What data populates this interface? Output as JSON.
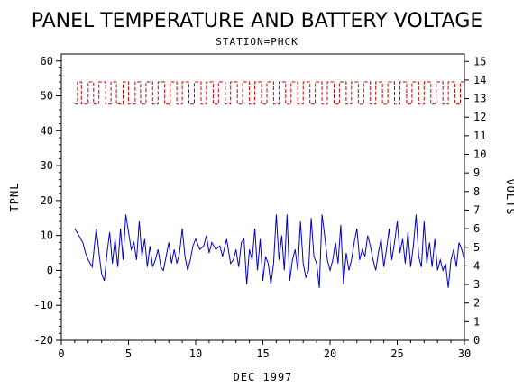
{
  "chart_data": {
    "type": "line",
    "title": "PANEL TEMPERATURE AND BATTERY VOLTAGE",
    "subtitle": "STATION=PHCK",
    "xlabel": "DEC 1997",
    "ylabel_left": "TPNL",
    "ylabel_right": "VOLTS",
    "xlim": [
      0,
      30
    ],
    "ylim_left": [
      -20,
      62
    ],
    "ylim_right": [
      0,
      15.4
    ],
    "x_ticks": [
      0,
      5,
      10,
      15,
      20,
      25,
      30
    ],
    "y_ticks_left": [
      -20,
      -10,
      0,
      10,
      20,
      30,
      40,
      50,
      60
    ],
    "y_ticks_right": [
      0,
      1,
      2,
      3,
      4,
      5,
      6,
      7,
      8,
      9,
      10,
      11,
      12,
      13,
      14,
      15
    ],
    "grid": false,
    "series": [
      {
        "axis": "left",
        "color": "#0000cc",
        "x": [
          1.0,
          1.3,
          1.6,
          1.8,
          2.0,
          2.3,
          2.6,
          2.9,
          3.0,
          3.2,
          3.4,
          3.6,
          3.8,
          4.0,
          4.2,
          4.4,
          4.6,
          4.8,
          5.0,
          5.2,
          5.4,
          5.6,
          5.8,
          6.0,
          6.2,
          6.4,
          6.6,
          6.8,
          7.0,
          7.2,
          7.4,
          7.6,
          7.8,
          8.0,
          8.2,
          8.4,
          8.6,
          8.8,
          9.0,
          9.2,
          9.4,
          9.6,
          9.8,
          10.0,
          10.3,
          10.6,
          10.8,
          11.0,
          11.2,
          11.5,
          11.8,
          12.0,
          12.3,
          12.6,
          12.8,
          13.0,
          13.2,
          13.4,
          13.6,
          13.8,
          14.0,
          14.2,
          14.4,
          14.6,
          14.8,
          15.0,
          15.2,
          15.4,
          15.6,
          15.8,
          16.0,
          16.2,
          16.4,
          16.6,
          16.8,
          17.0,
          17.2,
          17.4,
          17.6,
          17.8,
          18.0,
          18.2,
          18.4,
          18.6,
          18.8,
          19.0,
          19.2,
          19.4,
          19.6,
          19.8,
          20.0,
          20.2,
          20.4,
          20.6,
          20.8,
          21.0,
          21.2,
          21.4,
          21.6,
          21.8,
          22.0,
          22.2,
          22.4,
          22.6,
          22.8,
          23.0,
          23.2,
          23.4,
          23.6,
          23.8,
          24.0,
          24.2,
          24.4,
          24.6,
          24.8,
          25.0,
          25.2,
          25.4,
          25.6,
          25.8,
          26.0,
          26.2,
          26.4,
          26.6,
          26.8,
          27.0,
          27.2,
          27.4,
          27.6,
          27.8,
          28.0,
          28.2,
          28.4,
          28.6,
          28.8,
          29.0,
          29.2,
          29.4,
          29.6,
          29.8,
          30.0
        ],
        "values": [
          12,
          10,
          8,
          5,
          3,
          1,
          12,
          2,
          -1,
          -3,
          5,
          11,
          2,
          9,
          1,
          12,
          3,
          16,
          11,
          6,
          8,
          3,
          14,
          4,
          9,
          1,
          7,
          1,
          3,
          6,
          1,
          0,
          4,
          8,
          2,
          6,
          2,
          5,
          12,
          4,
          0,
          3,
          7,
          9,
          6,
          7,
          10,
          5,
          8,
          6,
          7,
          4,
          9,
          2,
          3,
          6,
          1,
          8,
          9,
          -4,
          6,
          3,
          12,
          0,
          9,
          -3,
          4,
          2,
          -4,
          2,
          16,
          3,
          10,
          0,
          16,
          -3,
          3,
          6,
          0,
          14,
          2,
          -2,
          0,
          15,
          4,
          2,
          -5,
          16,
          10,
          3,
          0,
          3,
          8,
          2,
          13,
          -4,
          5,
          0,
          3,
          8,
          12,
          3,
          6,
          4,
          10,
          7,
          3,
          0,
          5,
          9,
          1,
          6,
          12,
          3,
          8,
          14,
          5,
          9,
          2,
          11,
          1,
          7,
          16,
          4,
          1,
          14,
          2,
          8,
          1,
          9,
          0,
          3,
          0,
          2,
          -5,
          3,
          6,
          1,
          8,
          6,
          3
        ]
      },
      {
        "axis": "right",
        "color": "#cc0000",
        "style": "staircase",
        "low": 12.7,
        "high": 13.9,
        "x_switch": [
          1.2,
          1.5,
          2.0,
          2.4,
          2.8,
          3.3,
          3.7,
          4.1,
          4.6,
          5.0,
          5.5,
          5.9,
          6.3,
          6.8,
          7.2,
          7.7,
          8.1,
          8.6,
          9.0,
          9.5,
          9.9,
          10.4,
          10.8,
          11.3,
          11.7,
          12.2,
          12.6,
          13.1,
          13.5,
          14.0,
          14.4,
          14.9,
          15.3,
          15.8,
          16.2,
          16.7,
          17.1,
          17.6,
          18.0,
          18.5,
          18.9,
          19.4,
          19.8,
          20.3,
          20.7,
          21.2,
          21.6,
          22.1,
          22.5,
          23.0,
          23.4,
          23.9,
          24.3,
          24.8,
          25.2,
          25.7,
          26.1,
          26.6,
          27.0,
          27.5,
          27.9,
          28.4,
          28.8,
          29.3,
          29.7
        ]
      }
    ]
  }
}
